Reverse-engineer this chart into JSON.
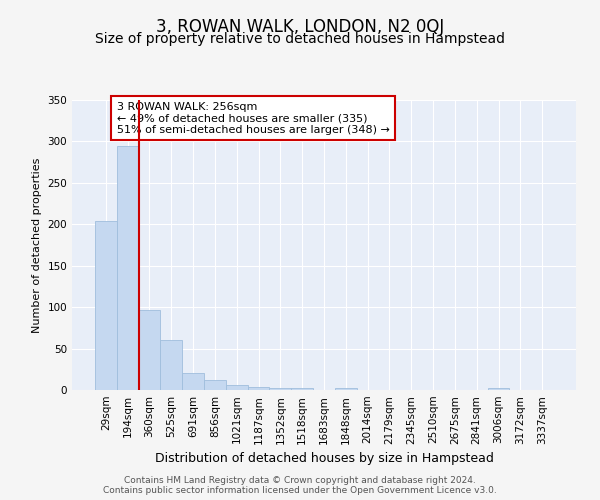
{
  "title": "3, ROWAN WALK, LONDON, N2 0QJ",
  "subtitle": "Size of property relative to detached houses in Hampstead",
  "xlabel": "Distribution of detached houses by size in Hampstead",
  "ylabel": "Number of detached properties",
  "bar_labels": [
    "29sqm",
    "194sqm",
    "360sqm",
    "525sqm",
    "691sqm",
    "856sqm",
    "1021sqm",
    "1187sqm",
    "1352sqm",
    "1518sqm",
    "1683sqm",
    "1848sqm",
    "2014sqm",
    "2179sqm",
    "2345sqm",
    "2510sqm",
    "2675sqm",
    "2841sqm",
    "3006sqm",
    "3172sqm",
    "3337sqm"
  ],
  "bar_values": [
    204,
    295,
    97,
    60,
    21,
    12,
    6,
    4,
    3,
    2,
    0,
    3,
    0,
    0,
    0,
    0,
    0,
    0,
    3,
    0,
    0
  ],
  "bar_color": "#c5d8f0",
  "bar_edgecolor": "#a0bedd",
  "fig_bg_color": "#f5f5f5",
  "plot_bg_color": "#e8eef8",
  "grid_color": "#ffffff",
  "red_line_x": 1.5,
  "annotation_text": "3 ROWAN WALK: 256sqm\n← 49% of detached houses are smaller (335)\n51% of semi-detached houses are larger (348) →",
  "annotation_box_facecolor": "#ffffff",
  "annotation_box_edgecolor": "#cc0000",
  "ylim": [
    0,
    350
  ],
  "yticks": [
    0,
    50,
    100,
    150,
    200,
    250,
    300,
    350
  ],
  "footer_line1": "Contains HM Land Registry data © Crown copyright and database right 2024.",
  "footer_line2": "Contains public sector information licensed under the Open Government Licence v3.0.",
  "title_fontsize": 12,
  "subtitle_fontsize": 10,
  "xlabel_fontsize": 9,
  "ylabel_fontsize": 8,
  "tick_fontsize": 7.5,
  "annotation_fontsize": 8,
  "footer_fontsize": 6.5
}
